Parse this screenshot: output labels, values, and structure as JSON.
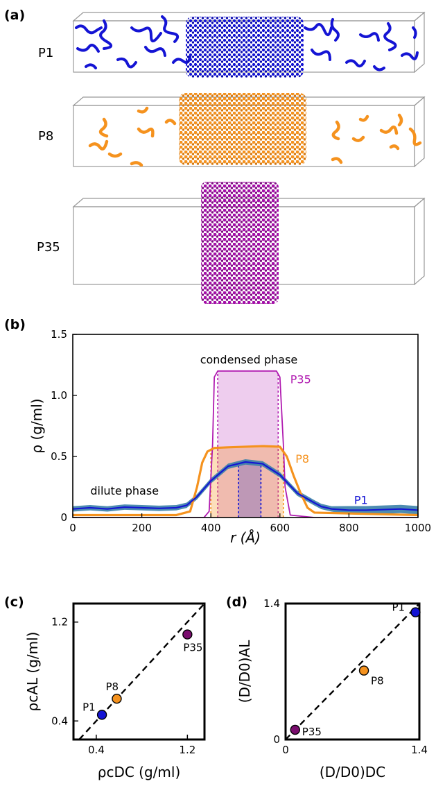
{
  "panels": {
    "a": {
      "label": "(a)",
      "systems": [
        {
          "name": "P1",
          "color": "#1414d4"
        },
        {
          "name": "P8",
          "color": "#f5921e"
        },
        {
          "name": "P35",
          "color": "#a40ea8"
        }
      ]
    },
    "b": {
      "label": "(b)"
    },
    "c": {
      "label": "(c)"
    },
    "d": {
      "label": "(d)"
    }
  },
  "chart_data": [
    {
      "panel": "b",
      "type": "line",
      "xlabel": "r (Å)",
      "ylabel": "ρ (g/ml)",
      "xlim": [
        0,
        1000
      ],
      "ylim": [
        0,
        1.5
      ],
      "xticks": [
        0,
        200,
        400,
        600,
        800,
        1000
      ],
      "yticks": [
        0,
        0.5,
        1.0,
        1.5
      ],
      "ytick_labels": [
        "0",
        "0.5",
        "1.0",
        "1.5"
      ],
      "annotations": [
        "condensed phase",
        "dilute phase"
      ],
      "series": [
        {
          "name": "P35",
          "color": "#b01bb0",
          "x": [
            0,
            380,
            395,
            405,
            410,
            420,
            430,
            590,
            600,
            610,
            615,
            630,
            700,
            1000
          ],
          "y": [
            0,
            0,
            0.05,
            0.6,
            1.15,
            1.2,
            1.2,
            1.2,
            1.15,
            0.6,
            0.25,
            0.02,
            0,
            0
          ],
          "condensed_range": [
            420,
            595
          ]
        },
        {
          "name": "P8",
          "color": "#f5921e",
          "x": [
            0,
            300,
            340,
            360,
            375,
            390,
            410,
            450,
            500,
            550,
            600,
            620,
            640,
            660,
            680,
            700,
            1000
          ],
          "y": [
            0.02,
            0.02,
            0.05,
            0.25,
            0.45,
            0.54,
            0.57,
            0.575,
            0.58,
            0.585,
            0.58,
            0.5,
            0.34,
            0.2,
            0.08,
            0.04,
            0.02
          ],
          "condensed_range": [
            400,
            610
          ]
        },
        {
          "name": "P1",
          "color": "#1414d4",
          "x": [
            0,
            50,
            100,
            150,
            200,
            250,
            300,
            330,
            360,
            400,
            450,
            500,
            550,
            600,
            650,
            700,
            720,
            750,
            800,
            850,
            900,
            950,
            1000
          ],
          "y": [
            0.07,
            0.08,
            0.07,
            0.085,
            0.08,
            0.075,
            0.08,
            0.1,
            0.17,
            0.3,
            0.42,
            0.455,
            0.44,
            0.35,
            0.2,
            0.12,
            0.09,
            0.07,
            0.06,
            0.06,
            0.065,
            0.07,
            0.06
          ],
          "condensed_range": [
            480,
            545
          ]
        }
      ]
    },
    {
      "panel": "c",
      "type": "scatter",
      "xlim": [
        0.2,
        1.35
      ],
      "ylim": [
        0.25,
        1.35
      ],
      "xticks": [
        0.4,
        1.2
      ],
      "yticks": [
        0.4,
        1.2
      ],
      "xtick_labels": [
        "0.4",
        "1.2"
      ],
      "ytick_labels": [
        "0.4",
        "1.2"
      ],
      "xlabel": "ρcDC (g/ml)",
      "ylabel": "ρcAL (g/ml)",
      "points": [
        {
          "name": "P1",
          "x": 0.45,
          "y": 0.45,
          "color": "#1414d4"
        },
        {
          "name": "P8",
          "x": 0.58,
          "y": 0.58,
          "color": "#f5921e"
        },
        {
          "name": "P35",
          "x": 1.2,
          "y": 1.1,
          "color": "#7a0d6e"
        }
      ]
    },
    {
      "panel": "d",
      "type": "scatter",
      "xlim": [
        0,
        1.4
      ],
      "ylim": [
        0,
        1.4
      ],
      "xticks": [
        0,
        1.4
      ],
      "yticks": [
        0,
        1.4
      ],
      "xtick_labels": [
        "0",
        "1.4"
      ],
      "ytick_labels": [
        "0",
        "1.4"
      ],
      "xlabel": "(D/D0)DC",
      "ylabel": "(D/D0)AL",
      "points": [
        {
          "name": "P1",
          "x": 1.36,
          "y": 1.31,
          "color": "#1414d4"
        },
        {
          "name": "P8",
          "x": 0.82,
          "y": 0.71,
          "color": "#f5921e"
        },
        {
          "name": "P35",
          "x": 0.1,
          "y": 0.1,
          "color": "#7a0d6e"
        }
      ]
    }
  ]
}
